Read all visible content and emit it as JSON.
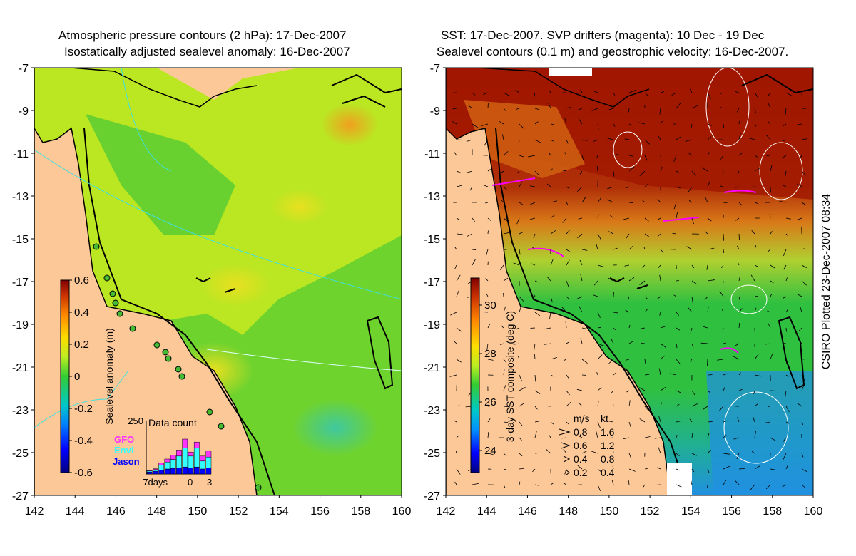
{
  "left_panel": {
    "title_line1": "Atmospheric pressure contours (2 hPa): 17-Dec-2007",
    "title_line2": "Isostatically adjusted sealevel anomaly: 16-Dec-2007",
    "colorbar": {
      "label": "Sealevel anomaly (m)",
      "ticks": [
        "0.6",
        "0.4",
        "0.2",
        "0",
        "-0.2",
        "-0.4",
        "-0.6"
      ]
    },
    "inset": {
      "title": "Data count",
      "ymax_label": "250",
      "x_labels": [
        "-7days",
        "0",
        "3"
      ],
      "legend": [
        {
          "name": "GFO",
          "color": "#ff33ff"
        },
        {
          "name": "Envi",
          "color": "#33ffff"
        },
        {
          "name": "Jason",
          "color": "#0000ff"
        }
      ],
      "bars": [
        {
          "jason": 10,
          "envi": 5,
          "gfo": 3
        },
        {
          "jason": 14,
          "envi": 8,
          "gfo": 4
        },
        {
          "jason": 20,
          "envi": 25,
          "gfo": 10
        },
        {
          "jason": 25,
          "envi": 35,
          "gfo": 15
        },
        {
          "jason": 28,
          "envi": 45,
          "gfo": 22
        },
        {
          "jason": 30,
          "envi": 60,
          "gfo": 30
        },
        {
          "jason": 35,
          "envi": 95,
          "gfo": 45
        },
        {
          "jason": 30,
          "envi": 60,
          "gfo": 20
        },
        {
          "jason": 35,
          "envi": 95,
          "gfo": 30
        },
        {
          "jason": 25,
          "envi": 40,
          "gfo": 25
        },
        {
          "jason": 30,
          "envi": 55,
          "gfo": 30
        }
      ]
    }
  },
  "right_panel": {
    "title_line1": "SST: 17-Dec-2007. SVP drifters (magenta): 10 Dec - 19 Dec",
    "title_line2": "Sealevel contours (0.1 m) and geostrophic velocity: 16-Dec-2007.",
    "colorbar": {
      "label": "3-day SST composite (deg C)",
      "ticks": [
        "30",
        "28",
        "26",
        "24"
      ]
    },
    "velocity_legend": {
      "header_ms": "m/s",
      "header_kt": "kt",
      "rows": [
        {
          "ms": "0.8",
          "kt": "1.6"
        },
        {
          "ms": "0.6",
          "kt": "1.2"
        },
        {
          "ms": "0.4",
          "kt": "0.8"
        },
        {
          "ms": "0.2",
          "kt": "0.4"
        }
      ]
    }
  },
  "axes": {
    "lat_labels": [
      "-7",
      "-9",
      "-11",
      "-13",
      "-15",
      "-17",
      "-19",
      "-21",
      "-23",
      "-25",
      "-27"
    ],
    "lon_labels": [
      "142",
      "144",
      "146",
      "148",
      "150",
      "152",
      "154",
      "156",
      "158",
      "160"
    ]
  },
  "credit": "CSIRO Plotted 23-Dec-2007 08:34",
  "colors": {
    "land": "#fcc898",
    "sla_green": "#55cc33",
    "sla_yellowgreen": "#bbe622",
    "sst_red": "#a01800",
    "sst_orange": "#d06010",
    "sst_green": "#30c040",
    "sst_blue": "#2090e0",
    "drifter": "#ff00ff"
  }
}
